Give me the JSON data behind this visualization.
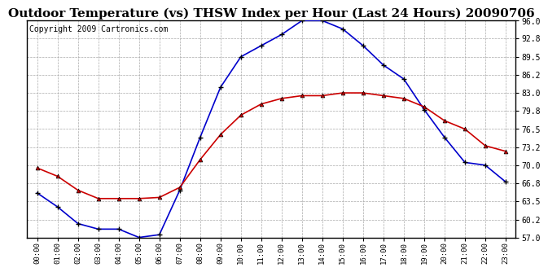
{
  "title": "Outdoor Temperature (vs) THSW Index per Hour (Last 24 Hours) 20090706",
  "copyright": "Copyright 2009 Cartronics.com",
  "hours": [
    "00:00",
    "01:00",
    "02:00",
    "03:00",
    "04:00",
    "05:00",
    "06:00",
    "07:00",
    "08:00",
    "09:00",
    "10:00",
    "11:00",
    "12:00",
    "13:00",
    "14:00",
    "15:00",
    "16:00",
    "17:00",
    "18:00",
    "19:00",
    "20:00",
    "21:00",
    "22:00",
    "23:00"
  ],
  "temp": [
    69.5,
    68.0,
    65.5,
    64.0,
    64.0,
    64.0,
    64.2,
    66.0,
    71.0,
    75.5,
    79.0,
    81.0,
    82.0,
    82.5,
    82.5,
    83.0,
    83.0,
    82.5,
    82.0,
    80.5,
    78.0,
    76.5,
    73.5,
    72.5
  ],
  "thsw": [
    65.0,
    62.5,
    59.5,
    58.5,
    58.5,
    57.0,
    57.5,
    65.5,
    75.0,
    84.0,
    89.5,
    91.5,
    93.5,
    96.0,
    96.0,
    94.5,
    91.5,
    88.0,
    85.5,
    80.0,
    75.0,
    70.5,
    70.0,
    67.0
  ],
  "temp_color": "#cc0000",
  "thsw_color": "#0000cc",
  "bg_color": "#ffffff",
  "plot_bg": "#ffffff",
  "grid_color": "#aaaaaa",
  "ylim": [
    57.0,
    96.0
  ],
  "yticks": [
    57.0,
    60.2,
    63.5,
    66.8,
    70.0,
    73.2,
    76.5,
    79.8,
    83.0,
    86.2,
    89.5,
    92.8,
    96.0
  ],
  "title_fontsize": 11,
  "copyright_fontsize": 7
}
